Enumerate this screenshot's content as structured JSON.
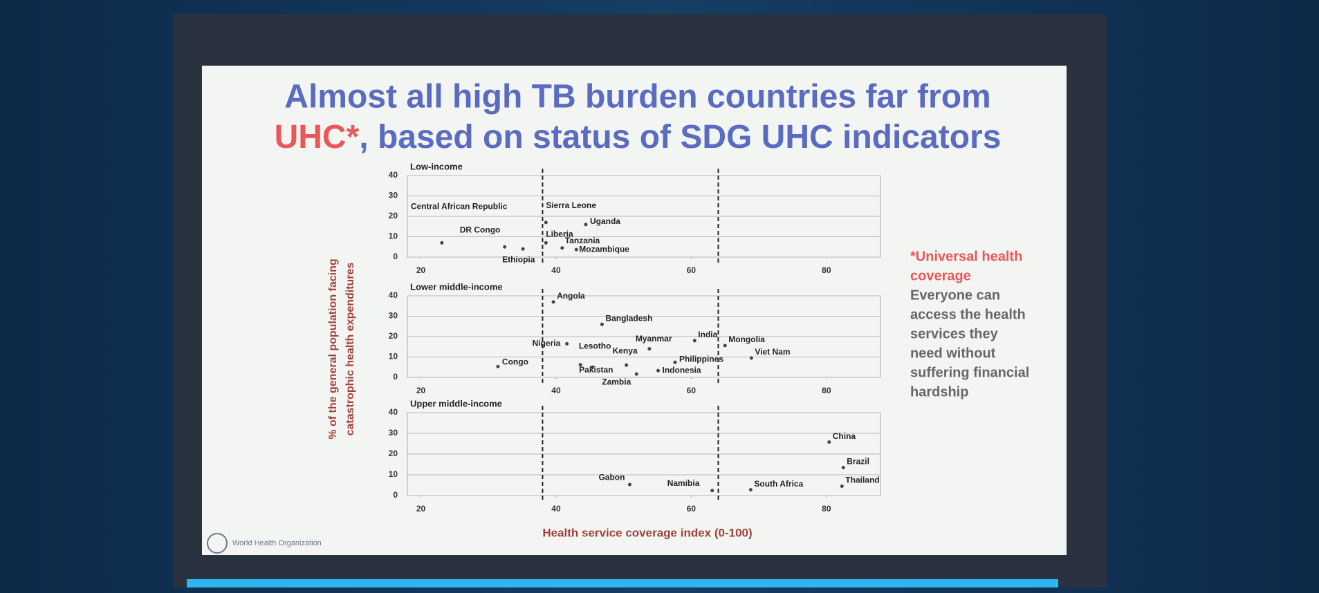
{
  "header": {
    "title_line1": "Almost all high TB burden countries far from",
    "title_highlight": "UHC*",
    "title_line2": ", based on status of SDG UHC indicators"
  },
  "note": {
    "term_lines": [
      "*Universal health",
      "coverage"
    ],
    "text_lines": [
      "Everyone can",
      "access the health",
      "services they",
      "need without",
      "suffering financial",
      "hardship"
    ]
  },
  "logo": "World Health Organization",
  "chart_data": [
    {
      "type": "scatter",
      "title": "Low-income",
      "xlim": [
        18,
        88
      ],
      "ylim": [
        0,
        40
      ],
      "xticks": [
        20,
        40,
        60,
        80
      ],
      "yticks": [
        0,
        10,
        20,
        30,
        40
      ],
      "grid": true,
      "reference_lines": [
        38,
        64
      ],
      "color": "#444",
      "point_labels": [
        "Central African Republic",
        "DR Congo",
        "Ethiopia",
        "Sierra Leone",
        "Uganda",
        "Liberia",
        "Tanzania",
        "Mozambique"
      ],
      "x": [
        23.1,
        32.4,
        35.1,
        38.5,
        44.4,
        38.5,
        40.9,
        43
      ],
      "values": [
        7,
        5,
        4,
        17,
        16,
        7,
        4.5,
        3.7
      ]
    },
    {
      "type": "scatter",
      "title": "Lower middle-income",
      "xlim": [
        18,
        88
      ],
      "ylim": [
        0,
        40
      ],
      "xticks": [
        20,
        40,
        60,
        80
      ],
      "yticks": [
        0,
        10,
        20,
        30,
        40
      ],
      "grid": true,
      "reference_lines": [
        38,
        64
      ],
      "color": "#444",
      "ylabel": [
        "% of the general population facing",
        "catastrophic health expenditures"
      ],
      "point_labels": [
        "Angola",
        "Bangladesh",
        "India",
        "Nigeria",
        "Lesotho",
        "Kenya",
        "Myanmar",
        "Mongolia",
        "Congo",
        "Pakistan",
        "Philippines",
        "Indonesia",
        "Viet Nam",
        "Zambia"
      ],
      "x": [
        39.6,
        46.8,
        60.5,
        41.6,
        45.4,
        50.4,
        53.8,
        65,
        31.4,
        43.6,
        57.6,
        55.1,
        68.9,
        51.9
      ],
      "values": [
        37,
        26,
        18,
        16.5,
        5,
        6,
        14,
        15.6,
        5.3,
        6.2,
        7.4,
        3.3,
        9.5,
        1.6
      ]
    },
    {
      "type": "scatter",
      "title": "Upper middle-income",
      "xlim": [
        18,
        88
      ],
      "ylim": [
        0,
        40
      ],
      "xticks": [
        20,
        40,
        60,
        80
      ],
      "yticks": [
        0,
        10,
        20,
        30,
        40
      ],
      "grid": true,
      "reference_lines": [
        38,
        64
      ],
      "color": "#444",
      "xlabel": "Health service coverage index (0-100)",
      "point_labels": [
        "China",
        "Brazil",
        "Gabon",
        "Namibia",
        "South Africa",
        "Thailand"
      ],
      "x": [
        80.4,
        82.5,
        50.9,
        63.1,
        68.8,
        82.3
      ],
      "values": [
        25.8,
        13.5,
        5.3,
        2.4,
        2.8,
        4.5
      ]
    }
  ]
}
